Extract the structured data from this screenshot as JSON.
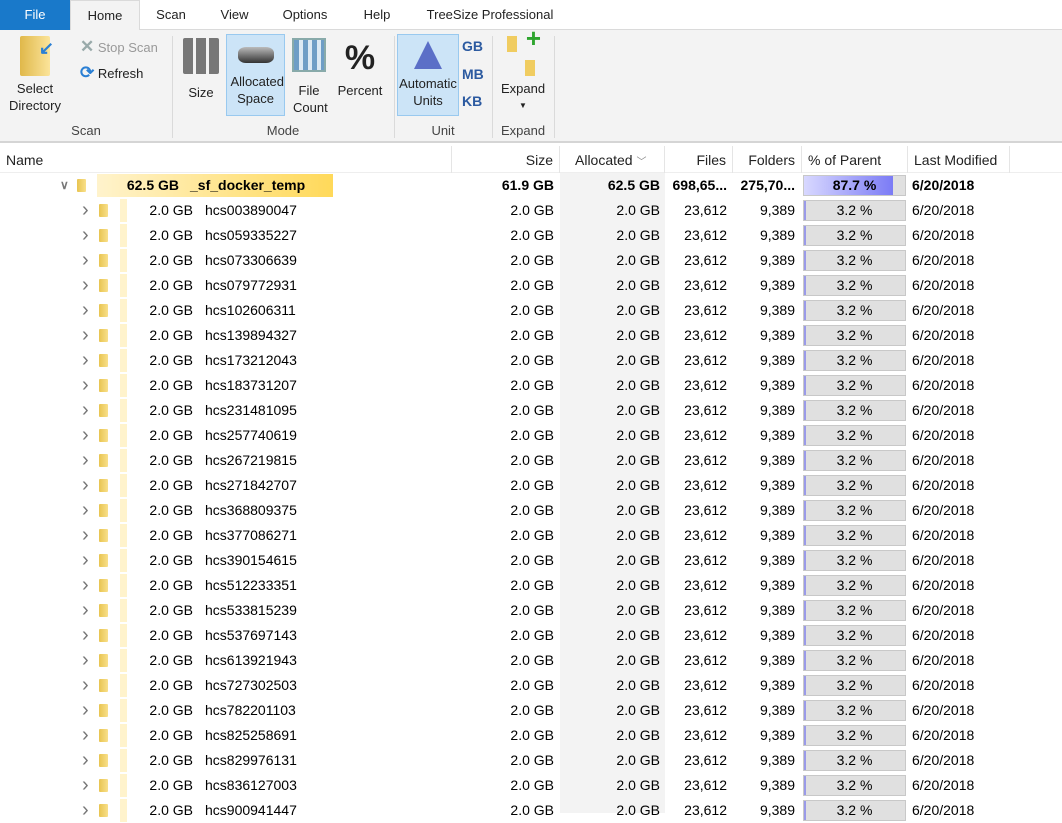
{
  "tabs": [
    "File",
    "Home",
    "Scan",
    "View",
    "Options",
    "Help",
    "TreeSize Professional"
  ],
  "ribbon": {
    "select_directory": "Select Directory",
    "stop_scan": "Stop Scan",
    "refresh": "Refresh",
    "size": "Size",
    "allocated_space": "Allocated Space",
    "file_count": "File Count",
    "percent": "Percent",
    "automatic_units": "Automatic Units",
    "gb": "GB",
    "mb": "MB",
    "kb": "KB",
    "expand": "Expand",
    "groups": {
      "scan": "Scan",
      "mode": "Mode",
      "unit": "Unit",
      "expand": "Expand"
    }
  },
  "columns": {
    "name": "Name",
    "size": "Size",
    "allocated": "Allocated",
    "files": "Files",
    "folders": "Folders",
    "percent": "% of Parent (...",
    "modified": "Last Modified"
  },
  "root": {
    "bar_label": "62.5 GB",
    "name": "_sf_docker_temp",
    "size": "61.9 GB",
    "allocated": "62.5 GB",
    "files": "698,65...",
    "folders": "275,70...",
    "percent": "87.7 %",
    "percent_value": 87.7,
    "modified": "6/20/2018"
  },
  "child_defaults": {
    "bar_label": "2.0 GB",
    "size": "2.0 GB",
    "allocated": "2.0 GB",
    "files": "23,612",
    "folders": "9,389",
    "percent": "3.2 %",
    "percent_value": 3.2,
    "modified": "6/20/2018"
  },
  "children": [
    "hcs003890047",
    "hcs059335227",
    "hcs073306639",
    "hcs079772931",
    "hcs102606311",
    "hcs139894327",
    "hcs173212043",
    "hcs183731207",
    "hcs231481095",
    "hcs257740619",
    "hcs267219815",
    "hcs271842707",
    "hcs368809375",
    "hcs377086271",
    "hcs390154615",
    "hcs512233351",
    "hcs533815239",
    "hcs537697143",
    "hcs613921943",
    "hcs727302503",
    "hcs782201103",
    "hcs825258691",
    "hcs829976131",
    "hcs836127003",
    "hcs900941447"
  ],
  "colors": {
    "file_tab": "#1979ca",
    "selected": "#cce4f7",
    "root_bar": "#ffd95a",
    "percent_fill": "#7b7bf5"
  }
}
